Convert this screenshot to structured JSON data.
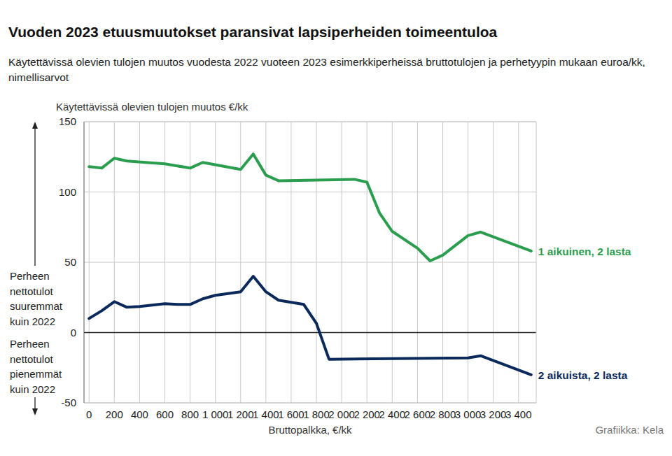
{
  "chart_data": {
    "type": "line",
    "title": "Vuoden 2023 etuusmuutokset paransivat lapsiperheiden toimeentuloa",
    "subtitle": "Käytettävissä olevien tulojen muutos vuodesta 2022 vuoteen 2023 esimerkkiperheissä bruttotulojen ja perhetyypin mukaan euroa/kk, nimellisarvot",
    "y_label": "Käytettävissä olevien tulojen muutos €/kk",
    "x_label": "Bruttopalkka, €/kk",
    "source": "Grafiikka: Kela",
    "annotations": [
      "Perheen nettotulot suuremmat kuin 2022",
      "Perheen nettotulot pienemmät kuin 2022"
    ],
    "series": [
      {
        "name": "1 aikuinen, 2 lasta",
        "color": "#2a9d4f",
        "marker": "none",
        "line_style": "solid",
        "x": [
          0,
          100,
          200,
          300,
          600,
          800,
          900,
          1200,
          1300,
          1400,
          1500,
          2100,
          2200,
          2300,
          2400,
          2600,
          2700,
          2800,
          3000,
          3100,
          3500
        ],
        "values": [
          118,
          117,
          124,
          122,
          120,
          117,
          121,
          116,
          127,
          112,
          108,
          109,
          107,
          85,
          72,
          60,
          51,
          55,
          69,
          71.5,
          58
        ]
      },
      {
        "name": "2 aikuista, 2 lasta",
        "color": "#0b2a5b",
        "marker": "none",
        "line_style": "solid",
        "x": [
          0,
          100,
          200,
          300,
          400,
          600,
          700,
          800,
          900,
          1000,
          1200,
          1300,
          1400,
          1500,
          1700,
          1800,
          1900,
          3000,
          3100,
          3500
        ],
        "values": [
          10,
          15.5,
          22,
          18,
          18.5,
          20.5,
          20,
          20,
          24,
          26.5,
          29,
          40,
          29,
          23,
          20,
          6.5,
          -19,
          -18,
          -16.5,
          -30
        ]
      }
    ],
    "xlim": [
      -40,
      3540
    ],
    "ylim": [
      -50,
      150
    ],
    "xticks": [
      0,
      200,
      400,
      600,
      800,
      {
        "value": 1000,
        "label": "1 000"
      },
      {
        "value": 1200,
        "label": "1 200"
      },
      {
        "value": 1400,
        "label": "1 400"
      },
      {
        "value": 1600,
        "label": "1 600"
      },
      {
        "value": 1800,
        "label": "1 800"
      },
      {
        "value": 2000,
        "label": "2 000"
      },
      {
        "value": 2200,
        "label": "2 200"
      },
      {
        "value": 2400,
        "label": "2 400"
      },
      {
        "value": 2600,
        "label": "2 600"
      },
      {
        "value": 2800,
        "label": "2 800"
      },
      {
        "value": 3000,
        "label": "3 000"
      },
      {
        "value": 3200,
        "label": "3 200"
      },
      {
        "value": 3400,
        "label": "3 400"
      }
    ],
    "yticks": [
      -50,
      0,
      50,
      100,
      150
    ],
    "grid": true
  }
}
